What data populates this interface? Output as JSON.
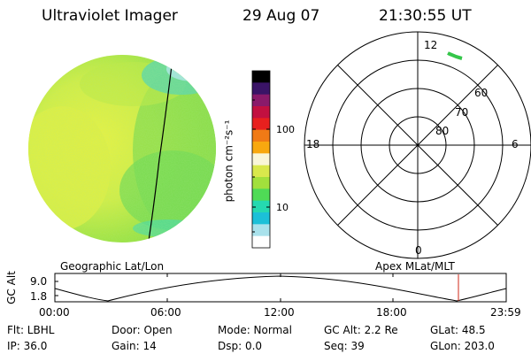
{
  "header": {
    "title": "Ultraviolet Imager",
    "date": "29 Aug 07",
    "time": "21:30:55  UT"
  },
  "image_panel": {
    "disk_palette": {
      "yellow": "#e8f23a",
      "green": "#8edc3e",
      "cyan": "#3fd9c7",
      "white": "#f4faff"
    }
  },
  "colorbar": {
    "unit_label": "photon cm⁻²s⁻¹",
    "tick_labels": [
      "100",
      "10"
    ],
    "colors": [
      "#000000",
      "#3a1466",
      "#8a1a6a",
      "#c21040",
      "#e8201e",
      "#f07a16",
      "#f8a80f",
      "#f9f6d8",
      "#d9e84c",
      "#a2e03c",
      "#4fdb56",
      "#25d9b0",
      "#1cc0d8",
      "#a9e2ec",
      "#ffffff"
    ]
  },
  "polar_plot": {
    "mlt_labels": {
      "top": "12",
      "left": "18",
      "right": "6",
      "bottom": "0"
    },
    "lat_labels": [
      "60",
      "70",
      "80"
    ],
    "highlight_color": "#35c64a"
  },
  "timeline": {
    "left_title": "Geographic Lat/Lon",
    "right_title": "Apex  MLat/MLT",
    "axis_label": "GC Alt",
    "y_ticks": [
      "9.0",
      "1.8"
    ],
    "time_ticks": [
      "00:00",
      "06:00",
      "12:00",
      "18:00",
      "23:59"
    ],
    "marker_time": "21:30:55",
    "marker_color": "#d12a1a"
  },
  "status": {
    "row1": {
      "filter": "Flt:  LBHL",
      "door": "Door:  Open",
      "mode": "Mode:  Normal",
      "gc_alt": "GC Alt:  2.2 Re",
      "glat": "GLat:   48.5"
    },
    "row2": {
      "ip": "IP:  36.0",
      "gain": "Gain:  14",
      "dsp": "Dsp:       0.0",
      "seq": "Seq:  39",
      "glon": "GLon:  203.0"
    }
  }
}
